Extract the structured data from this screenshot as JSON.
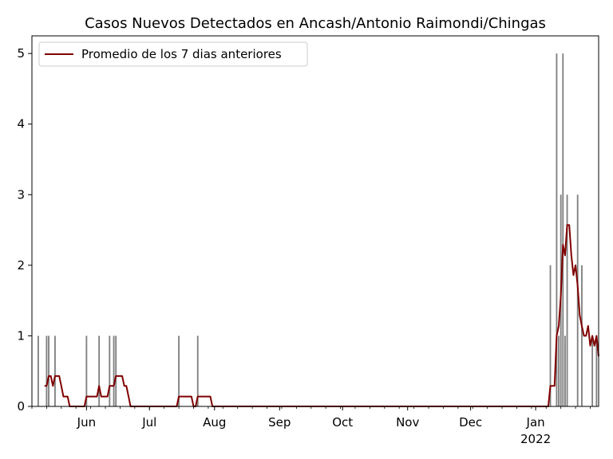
{
  "chart_data": {
    "type": "bar",
    "title": "Casos Nuevos Detectados en Ancash/Antonio Raimondi/Chingas",
    "xlabel": "",
    "ylabel": "",
    "x_range": [
      "2021-05-06",
      "2022-01-31"
    ],
    "ylim": [
      0,
      5.25
    ],
    "grid": false,
    "legend_position": "top-left",
    "bar_color": "#808080",
    "line_color": "#800000",
    "x_ticks": [
      {
        "date": "2021-06-01",
        "label": "Jun"
      },
      {
        "date": "2021-07-01",
        "label": "Jul"
      },
      {
        "date": "2021-08-01",
        "label": "Aug"
      },
      {
        "date": "2021-09-01",
        "label": "Sep"
      },
      {
        "date": "2021-10-01",
        "label": "Oct"
      },
      {
        "date": "2021-11-01",
        "label": "Nov"
      },
      {
        "date": "2021-12-01",
        "label": "Dec"
      },
      {
        "date": "2022-01-01",
        "label": "Jan",
        "sublabel": "2022"
      }
    ],
    "y_ticks": [
      0,
      1,
      2,
      3,
      4,
      5
    ],
    "series": [
      {
        "kind": "bar",
        "points": [
          [
            "2021-05-09",
            1
          ],
          [
            "2021-05-13",
            1
          ],
          [
            "2021-05-14",
            1
          ],
          [
            "2021-05-17",
            1
          ],
          [
            "2021-06-01",
            1
          ],
          [
            "2021-06-07",
            1
          ],
          [
            "2021-06-12",
            1
          ],
          [
            "2021-06-14",
            1
          ],
          [
            "2021-06-15",
            1
          ],
          [
            "2021-07-15",
            1
          ],
          [
            "2021-07-24",
            1
          ],
          [
            "2022-01-08",
            2
          ],
          [
            "2022-01-11",
            5
          ],
          [
            "2022-01-12",
            1
          ],
          [
            "2022-01-13",
            3
          ],
          [
            "2022-01-14",
            5
          ],
          [
            "2022-01-15",
            1
          ],
          [
            "2022-01-16",
            3
          ],
          [
            "2022-01-21",
            3
          ],
          [
            "2022-01-23",
            2
          ],
          [
            "2022-01-28",
            1
          ],
          [
            "2022-01-30",
            1
          ]
        ]
      },
      {
        "kind": "line",
        "name": "Promedio de los 7 dias anteriores",
        "points": [
          [
            "2021-05-12",
            0.29
          ],
          [
            "2021-05-13",
            0.29
          ],
          [
            "2021-05-14",
            0.43
          ],
          [
            "2021-05-15",
            0.43
          ],
          [
            "2021-05-16",
            0.29
          ],
          [
            "2021-05-17",
            0.43
          ],
          [
            "2021-05-19",
            0.43
          ],
          [
            "2021-05-20",
            0.29
          ],
          [
            "2021-05-21",
            0.14
          ],
          [
            "2021-05-23",
            0.14
          ],
          [
            "2021-05-24",
            0
          ],
          [
            "2021-05-31",
            0
          ],
          [
            "2021-06-01",
            0.14
          ],
          [
            "2021-06-06",
            0.14
          ],
          [
            "2021-06-07",
            0.29
          ],
          [
            "2021-06-08",
            0.14
          ],
          [
            "2021-06-11",
            0.14
          ],
          [
            "2021-06-12",
            0.29
          ],
          [
            "2021-06-14",
            0.29
          ],
          [
            "2021-06-15",
            0.43
          ],
          [
            "2021-06-18",
            0.43
          ],
          [
            "2021-06-19",
            0.29
          ],
          [
            "2021-06-20",
            0.29
          ],
          [
            "2021-06-22",
            0
          ],
          [
            "2021-07-14",
            0
          ],
          [
            "2021-07-15",
            0.14
          ],
          [
            "2021-07-21",
            0.14
          ],
          [
            "2021-07-22",
            0
          ],
          [
            "2021-07-23",
            0
          ],
          [
            "2021-07-24",
            0.14
          ],
          [
            "2021-07-30",
            0.14
          ],
          [
            "2021-07-31",
            0
          ],
          [
            "2022-01-07",
            0
          ],
          [
            "2022-01-08",
            0.29
          ],
          [
            "2022-01-10",
            0.29
          ],
          [
            "2022-01-11",
            1.0
          ],
          [
            "2022-01-12",
            1.14
          ],
          [
            "2022-01-13",
            1.57
          ],
          [
            "2022-01-14",
            2.29
          ],
          [
            "2022-01-15",
            2.14
          ],
          [
            "2022-01-16",
            2.57
          ],
          [
            "2022-01-17",
            2.57
          ],
          [
            "2022-01-18",
            2.14
          ],
          [
            "2022-01-19",
            1.86
          ],
          [
            "2022-01-20",
            2.0
          ],
          [
            "2022-01-21",
            1.71
          ],
          [
            "2022-01-22",
            1.29
          ],
          [
            "2022-01-23",
            1.14
          ],
          [
            "2022-01-24",
            1.0
          ],
          [
            "2022-01-25",
            1.0
          ],
          [
            "2022-01-26",
            1.14
          ],
          [
            "2022-01-27",
            0.86
          ],
          [
            "2022-01-28",
            1.0
          ],
          [
            "2022-01-29",
            0.86
          ],
          [
            "2022-01-30",
            1.0
          ],
          [
            "2022-01-31",
            0.71
          ]
        ]
      }
    ]
  }
}
